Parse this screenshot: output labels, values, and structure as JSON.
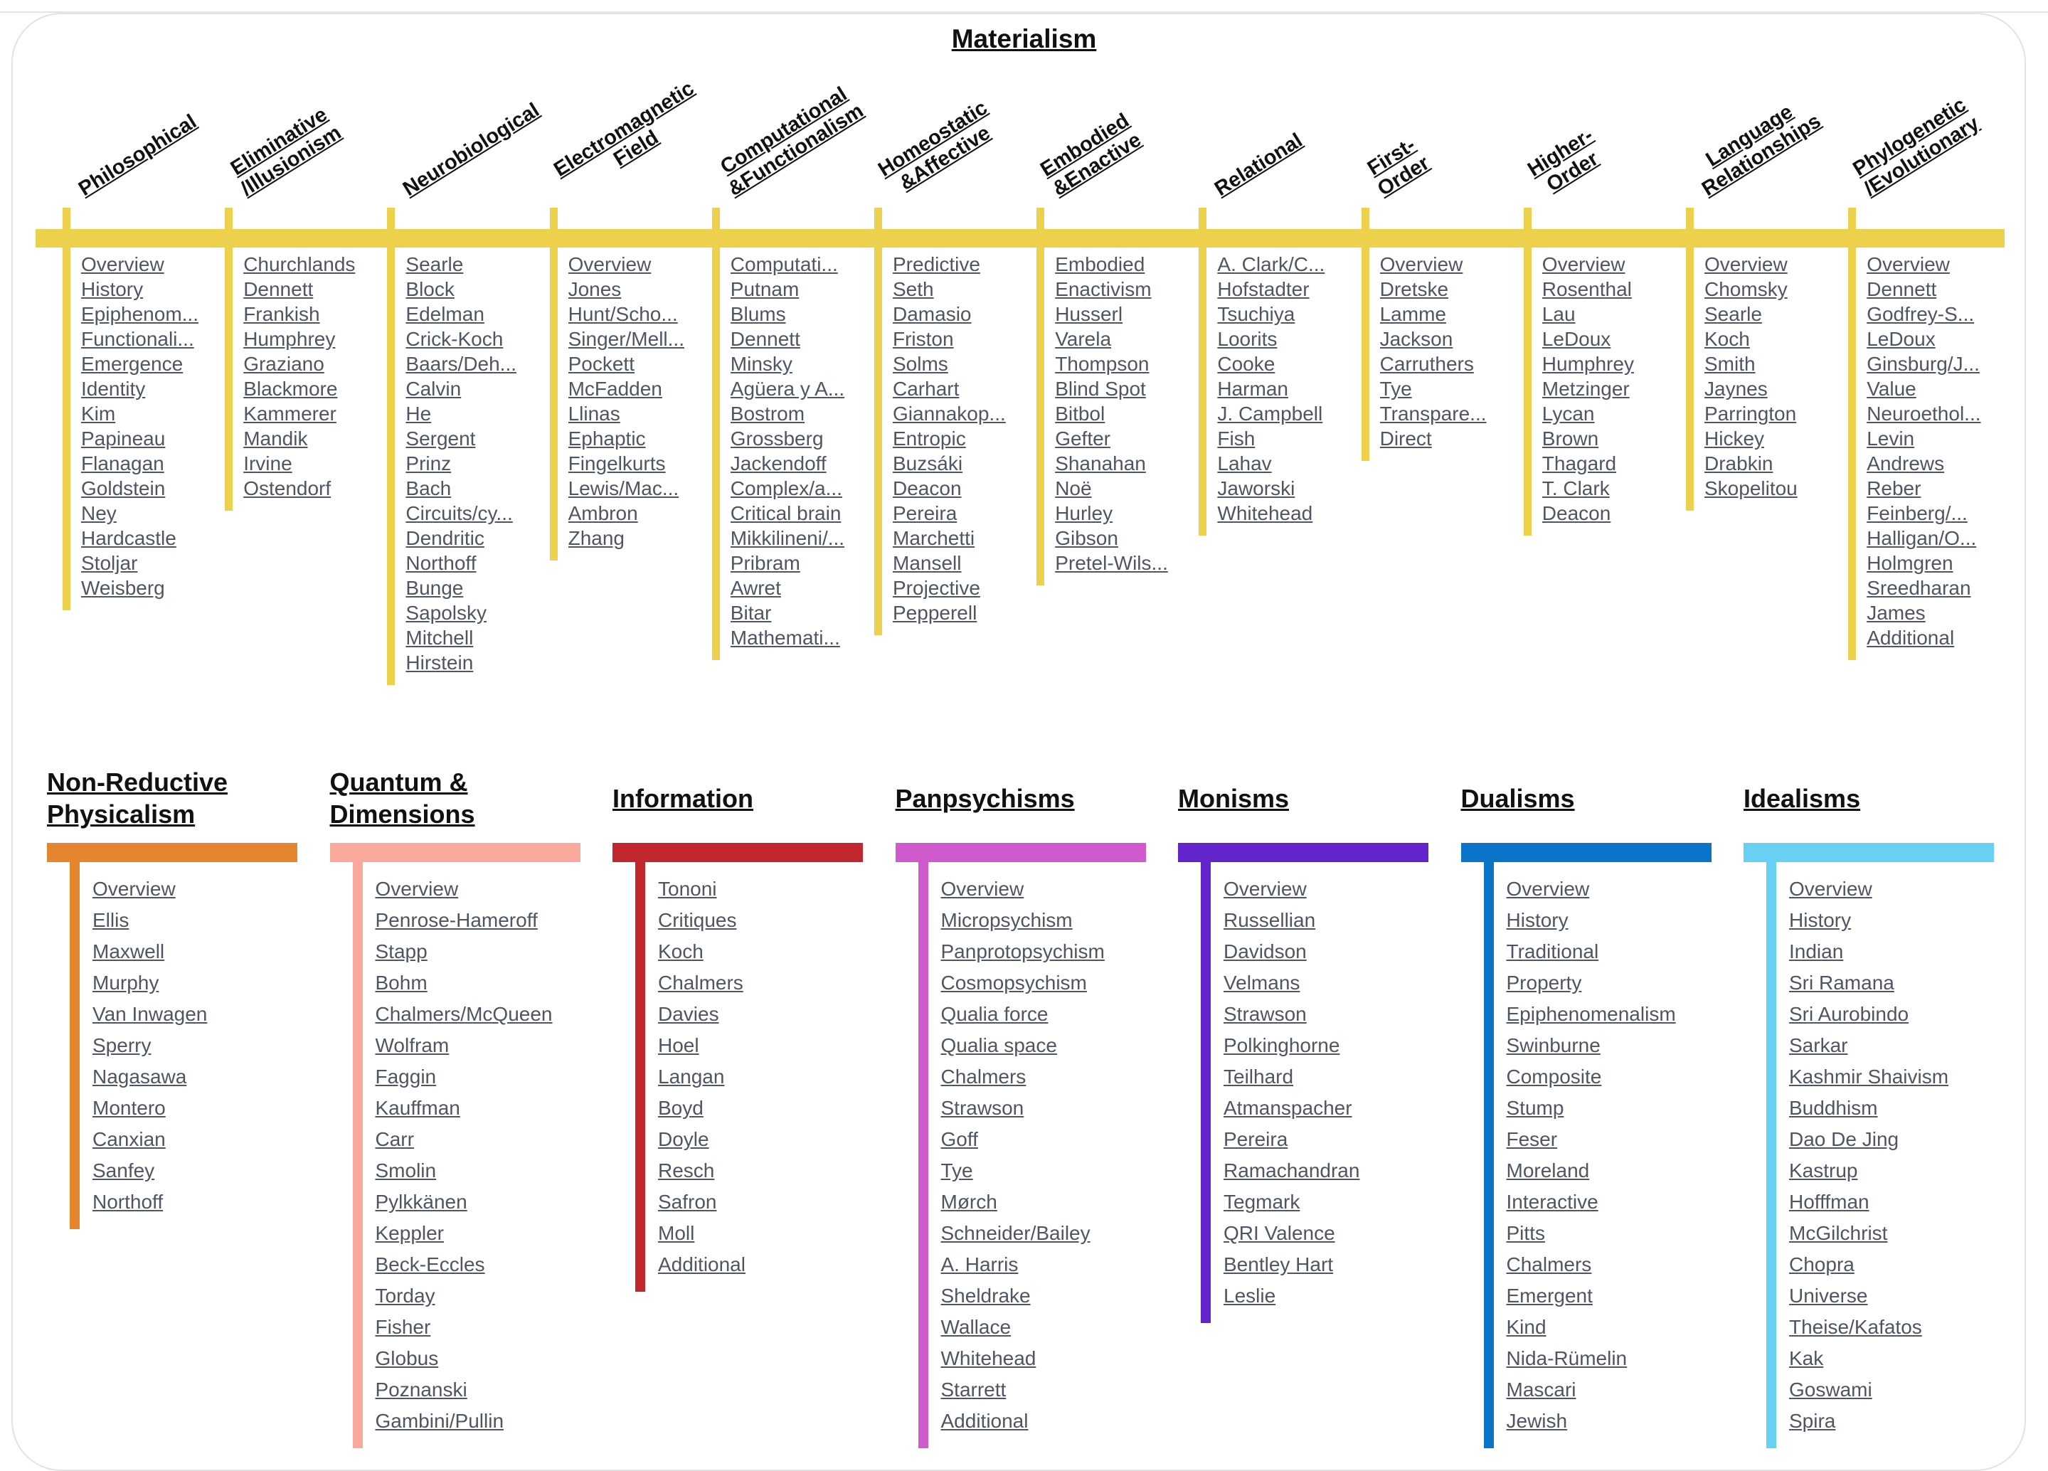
{
  "title": "Materialism",
  "materialism_columns": [
    {
      "heading": "Philosophical",
      "items": [
        "Overview",
        "History",
        "Epiphenom...",
        "Functionali...",
        "Emergence",
        "Identity",
        "Kim",
        "Papineau",
        "Flanagan",
        "Goldstein",
        "Ney",
        "Hardcastle",
        "Stoljar",
        "Weisberg"
      ]
    },
    {
      "heading": "Eliminative\n/Illusionism",
      "items": [
        "Churchlands",
        "Dennett",
        "Frankish",
        "Humphrey",
        "Graziano",
        "Blackmore",
        "Kammerer",
        "Mandik",
        "Irvine",
        "Ostendorf"
      ]
    },
    {
      "heading": "Neurobiological",
      "items": [
        "Searle",
        "Block",
        "Edelman",
        "Crick-Koch",
        "Baars/Deh...",
        "Calvin",
        "He",
        "Sergent",
        "Prinz",
        "Bach",
        "Circuits/cy...",
        "Dendritic",
        "Northoff",
        "Bunge",
        "Sapolsky",
        "Mitchell",
        "Hirstein"
      ]
    },
    {
      "heading": "Electromagnetic\nField",
      "items": [
        "Overview",
        "Jones",
        "Hunt/Scho...",
        "Singer/Mell...",
        "Pockett",
        "McFadden",
        "Llinas",
        "Ephaptic",
        "Fingelkurts",
        "Lewis/Mac...",
        "Ambron",
        "Zhang"
      ]
    },
    {
      "heading": "Computational\n&Functionalism",
      "items": [
        "Computati...",
        "Putnam",
        "Blums",
        "Dennett",
        "Minsky",
        "Agüera y A...",
        "Bostrom",
        "Grossberg",
        "Jackendoff",
        "Complex/a...",
        "Critical brain",
        "Mikkilineni/...",
        "Pribram",
        "Awret",
        "Bitar",
        "Mathemati..."
      ]
    },
    {
      "heading": "Homeostatic\n&Affective",
      "items": [
        "Predictive",
        "Seth",
        "Damasio",
        "Friston",
        "Solms",
        "Carhart",
        "Giannakop...",
        "Entropic",
        "Buzsáki",
        "Deacon",
        "Pereira",
        "Marchetti",
        "Mansell",
        "Projective",
        "Pepperell"
      ]
    },
    {
      "heading": "Embodied\n&Enactive",
      "items": [
        "Embodied",
        "Enactivism",
        "Husserl",
        "Varela",
        "Thompson",
        "Blind Spot",
        "Bitbol",
        "Gefter",
        "Shanahan",
        "Noë",
        "Hurley",
        "Gibson",
        "Pretel-Wils..."
      ]
    },
    {
      "heading": "Relational",
      "items": [
        "A. Clark/C...",
        "Hofstadter",
        "Tsuchiya",
        "Loorits",
        "Cooke",
        "Harman",
        "J. Campbell",
        "Fish",
        "Lahav",
        "Jaworski",
        "Whitehead"
      ]
    },
    {
      "heading": "First-\nOrder",
      "items": [
        "Overview",
        "Dretske",
        "Lamme",
        "Jackson",
        "Carruthers",
        "Tye",
        "Transpare...",
        "Direct"
      ]
    },
    {
      "heading": "Higher-\nOrder",
      "items": [
        "Overview",
        "Rosenthal",
        "Lau",
        "LeDoux",
        "Humphrey",
        "Metzinger",
        "Lycan",
        "Brown",
        "Thagard",
        "T. Clark",
        "Deacon"
      ]
    },
    {
      "heading": "Language\nRelationships",
      "items": [
        "Overview",
        "Chomsky",
        "Searle",
        "Koch",
        "Smith",
        "Jaynes",
        "Parrington",
        "Hickey",
        "Drabkin",
        "Skopelitou"
      ]
    },
    {
      "heading": "Phylogenetic\n/Evolutionary",
      "items": [
        "Overview",
        "Dennett",
        "Godfrey-S...",
        "LeDoux",
        "Ginsburg/J...",
        "Value",
        "Neuroethol...",
        "Levin",
        "Andrews",
        "Reber",
        "Feinberg/...",
        "Halligan/O...",
        "Holmgren",
        "Sreedharan",
        "James",
        "Additional"
      ]
    }
  ],
  "bottom_columns": [
    {
      "heading": "Non-Reductive Physicalism",
      "color": "#e5862e",
      "items": [
        "Overview",
        "Ellis",
        "Maxwell",
        "Murphy",
        "Van Inwagen",
        "Sperry",
        "Nagasawa",
        "Montero",
        "Canxian",
        "Sanfey",
        "Northoff"
      ]
    },
    {
      "heading": "Quantum & Dimensions",
      "color": "#f9a89c",
      "items": [
        "Overview",
        "Penrose-Hameroff",
        "Stapp",
        "Bohm",
        "Chalmers/McQueen",
        "Wolfram",
        "Faggin",
        "Kauffman",
        "Carr",
        "Smolin",
        "Pylkkänen",
        "Keppler",
        "Beck-Eccles",
        "Torday",
        "Fisher",
        "Globus",
        "Poznanski",
        "Gambini/Pullin"
      ]
    },
    {
      "heading": "Information",
      "color": "#c1272d",
      "items": [
        "Tononi",
        "Critiques",
        "Koch",
        "Chalmers",
        "Davies",
        "Hoel",
        "Langan",
        "Boyd",
        "Doyle",
        "Resch",
        "Safron",
        "Moll",
        "Additional"
      ]
    },
    {
      "heading": "Panpsychisms",
      "color": "#cf59cd",
      "items": [
        "Overview",
        "Micropsychism",
        "Panprotopsychism",
        "Cosmopsychism",
        "Qualia force",
        "Qualia space",
        "Chalmers",
        "Strawson",
        "Goff",
        "Tye",
        "Mørch",
        "Schneider/Bailey",
        "A. Harris",
        "Sheldrake",
        "Wallace",
        "Whitehead",
        "Starrett",
        "Additional"
      ]
    },
    {
      "heading": "Monisms",
      "color": "#6424cc",
      "items": [
        "Overview",
        "Russellian",
        "Davidson",
        "Velmans",
        "Strawson",
        "Polkinghorne",
        "Teilhard",
        "Atmanspacher",
        "Pereira",
        "Ramachandran",
        "Tegmark",
        "QRI Valence",
        "Bentley Hart",
        "Leslie"
      ]
    },
    {
      "heading": "Dualisms",
      "color": "#0a74c9",
      "items": [
        "Overview",
        "History",
        "Traditional",
        "Property",
        "Epiphenomenalism",
        "Swinburne",
        "Composite",
        "Stump",
        "Feser",
        "Moreland",
        "Interactive",
        "Pitts",
        "Chalmers",
        "Emergent",
        "Kind",
        "Nida-Rümelin",
        "Mascari",
        "Jewish"
      ]
    },
    {
      "heading": "Idealisms",
      "color": "#68d0f3",
      "items": [
        "Overview",
        "History",
        "Indian",
        "Sri Ramana",
        "Sri Aurobindo",
        "Sarkar",
        "Kashmir Shaivism",
        "Buddhism",
        "Dao De Jing",
        "Kastrup",
        "Hofffman",
        "McGilchrist",
        "Chopra",
        "Universe",
        "Theise/Kafatos",
        "Kak",
        "Goswami",
        "Spira"
      ]
    }
  ]
}
